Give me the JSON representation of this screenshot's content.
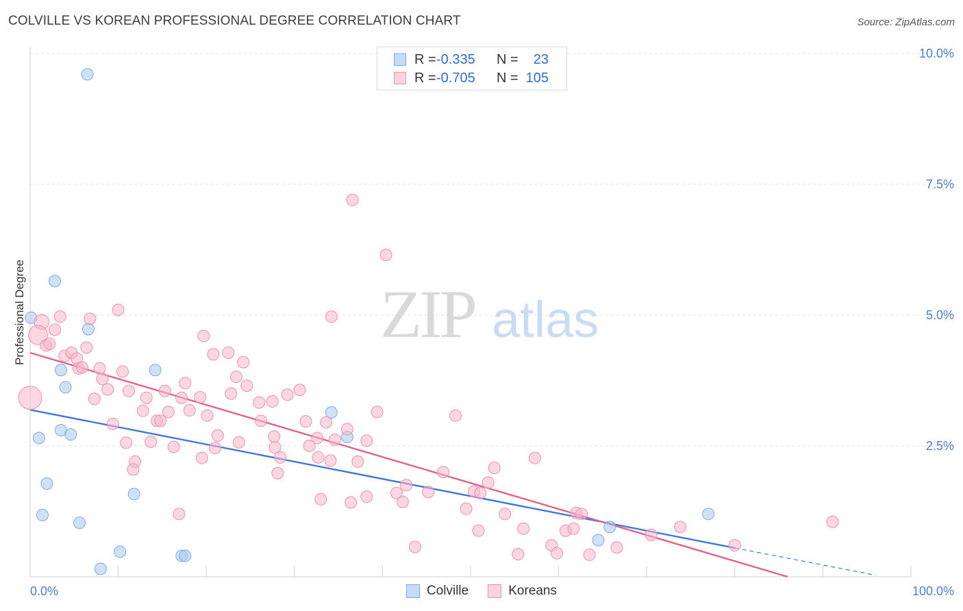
{
  "header": {
    "title": "COLVILLE VS KOREAN PROFESSIONAL DEGREE CORRELATION CHART",
    "source": "Source: ZipAtlas.com"
  },
  "legend": {
    "rows": [
      {
        "r_label": "R =",
        "r_value": "-0.335",
        "n_label": "N =",
        "n_value": "23",
        "color": "#a8c8f0"
      },
      {
        "r_label": "R =",
        "r_value": "-0.705",
        "n_label": "N =",
        "n_value": "105",
        "color": "#f7b7cb"
      }
    ],
    "series": [
      "Colville",
      "Koreans"
    ]
  },
  "watermark": {
    "zip": "ZIP",
    "atlas": "atlas"
  },
  "chart_data": {
    "type": "scatter",
    "title": "COLVILLE VS KOREAN PROFESSIONAL DEGREE CORRELATION CHART",
    "xlabel": "",
    "ylabel": "Professional Degree",
    "xlim": [
      0,
      100
    ],
    "ylim": [
      0,
      10
    ],
    "x_tick_labels": [
      "0.0%",
      "100.0%"
    ],
    "y_ticks": [
      2.5,
      5.0,
      7.5,
      10.0
    ],
    "y_tick_labels": [
      "2.5%",
      "5.0%",
      "7.5%",
      "10.0%"
    ],
    "grid": true,
    "legend_position": "top-center",
    "series": [
      {
        "name": "Colville",
        "color": "#a8c8f0",
        "stroke": "#7aaae6",
        "line_color": "#3b78d8",
        "trend": {
          "x0": 0,
          "y0": 3.19,
          "x1": 80,
          "y1": 0.55,
          "dash_to_x": 96,
          "dash_y1": 0.03
        },
        "points": [
          [
            6.5,
            9.6
          ],
          [
            2.8,
            5.65
          ],
          [
            0.1,
            4.95
          ],
          [
            6.6,
            4.73
          ],
          [
            3.5,
            3.95
          ],
          [
            14.2,
            3.95
          ],
          [
            4.0,
            3.62
          ],
          [
            3.5,
            2.8
          ],
          [
            1.0,
            2.65
          ],
          [
            4.6,
            2.72
          ],
          [
            34.2,
            3.14
          ],
          [
            36.0,
            2.67
          ],
          [
            1.9,
            1.78
          ],
          [
            11.8,
            1.58
          ],
          [
            1.4,
            1.18
          ],
          [
            5.6,
            1.03
          ],
          [
            10.2,
            0.48
          ],
          [
            17.2,
            0.4
          ],
          [
            17.6,
            0.4
          ],
          [
            8.0,
            0.15
          ],
          [
            64.5,
            0.7
          ],
          [
            65.8,
            0.95
          ],
          [
            77.0,
            1.2
          ]
        ]
      },
      {
        "name": "Koreans",
        "color": "#f7b7cb",
        "stroke": "#ef8fad",
        "line_color": "#e0608e",
        "trend": {
          "x0": 0,
          "y0": 4.28,
          "x1": 86,
          "y1": 0.0
        },
        "points": [
          [
            36.6,
            7.2
          ],
          [
            40.4,
            6.15
          ],
          [
            1.3,
            4.87
          ],
          [
            3.4,
            4.97
          ],
          [
            6.8,
            4.93
          ],
          [
            10.0,
            5.1
          ],
          [
            34.2,
            4.97
          ],
          [
            0.0,
            3.42
          ],
          [
            0.9,
            4.62
          ],
          [
            2.8,
            4.72
          ],
          [
            1.8,
            4.42
          ],
          [
            2.2,
            4.45
          ],
          [
            6.4,
            4.38
          ],
          [
            3.9,
            4.22
          ],
          [
            4.7,
            4.28
          ],
          [
            5.3,
            4.17
          ],
          [
            19.7,
            4.6
          ],
          [
            20.8,
            4.25
          ],
          [
            22.5,
            4.28
          ],
          [
            24.2,
            4.1
          ],
          [
            5.5,
            3.98
          ],
          [
            5.9,
            4.0
          ],
          [
            7.9,
            3.98
          ],
          [
            10.5,
            3.92
          ],
          [
            8.2,
            3.78
          ],
          [
            23.4,
            3.82
          ],
          [
            17.6,
            3.7
          ],
          [
            24.6,
            3.65
          ],
          [
            8.8,
            3.58
          ],
          [
            11.2,
            3.55
          ],
          [
            15.3,
            3.55
          ],
          [
            30.6,
            3.57
          ],
          [
            29.2,
            3.48
          ],
          [
            22.8,
            3.5
          ],
          [
            7.3,
            3.4
          ],
          [
            13.2,
            3.42
          ],
          [
            17.2,
            3.42
          ],
          [
            19.3,
            3.43
          ],
          [
            26.0,
            3.33
          ],
          [
            27.5,
            3.35
          ],
          [
            12.8,
            3.17
          ],
          [
            15.7,
            3.15
          ],
          [
            18.1,
            3.18
          ],
          [
            20.1,
            3.08
          ],
          [
            26.2,
            2.98
          ],
          [
            39.4,
            3.15
          ],
          [
            48.3,
            3.08
          ],
          [
            9.4,
            2.92
          ],
          [
            14.4,
            2.98
          ],
          [
            14.8,
            2.98
          ],
          [
            31.3,
            2.97
          ],
          [
            33.6,
            2.95
          ],
          [
            21.3,
            2.7
          ],
          [
            27.7,
            2.68
          ],
          [
            32.6,
            2.65
          ],
          [
            34.6,
            2.62
          ],
          [
            36.0,
            2.82
          ],
          [
            38.2,
            2.6
          ],
          [
            10.9,
            2.56
          ],
          [
            13.7,
            2.58
          ],
          [
            16.3,
            2.48
          ],
          [
            21.0,
            2.46
          ],
          [
            23.7,
            2.57
          ],
          [
            27.8,
            2.47
          ],
          [
            31.7,
            2.5
          ],
          [
            19.5,
            2.27
          ],
          [
            28.4,
            2.28
          ],
          [
            32.7,
            2.28
          ],
          [
            34.1,
            2.22
          ],
          [
            37.2,
            2.2
          ],
          [
            11.9,
            2.2
          ],
          [
            11.7,
            2.05
          ],
          [
            28.1,
            1.98
          ],
          [
            52.7,
            2.08
          ],
          [
            57.3,
            2.27
          ],
          [
            46.9,
            2.0
          ],
          [
            42.7,
            1.75
          ],
          [
            41.6,
            1.6
          ],
          [
            45.2,
            1.62
          ],
          [
            50.4,
            1.63
          ],
          [
            51.1,
            1.6
          ],
          [
            52.0,
            1.8
          ],
          [
            33.0,
            1.48
          ],
          [
            36.4,
            1.42
          ],
          [
            38.2,
            1.53
          ],
          [
            42.3,
            1.43
          ],
          [
            49.5,
            1.3
          ],
          [
            53.9,
            1.2
          ],
          [
            62.0,
            1.22
          ],
          [
            16.9,
            1.2
          ],
          [
            50.9,
            0.88
          ],
          [
            56.0,
            0.92
          ],
          [
            60.8,
            0.88
          ],
          [
            61.7,
            0.92
          ],
          [
            70.5,
            0.8
          ],
          [
            91.1,
            1.05
          ],
          [
            43.7,
            0.57
          ],
          [
            59.2,
            0.6
          ],
          [
            55.4,
            0.43
          ],
          [
            59.8,
            0.45
          ],
          [
            63.5,
            0.42
          ],
          [
            66.6,
            0.56
          ],
          [
            73.8,
            0.95
          ],
          [
            62.6,
            1.2
          ],
          [
            80.0,
            0.6
          ]
        ]
      }
    ]
  }
}
